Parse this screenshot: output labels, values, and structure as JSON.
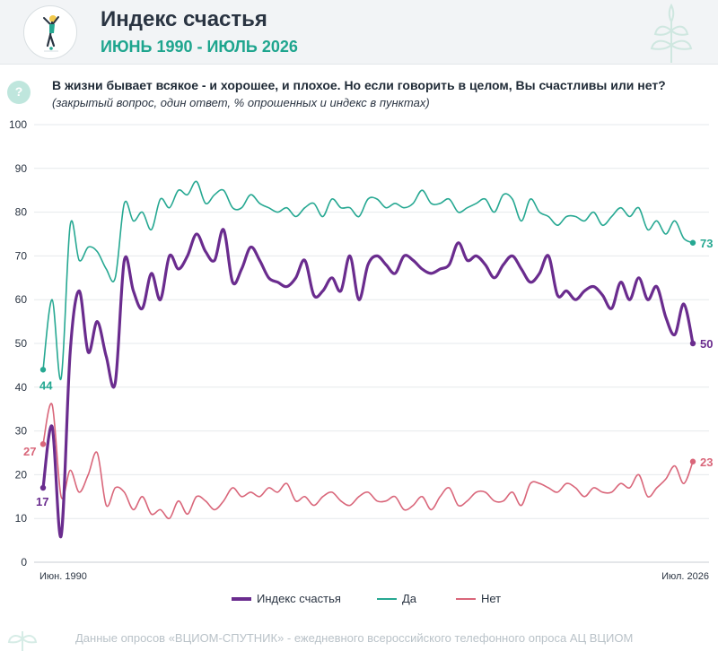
{
  "header": {
    "title": "Индекс счастья",
    "subtitle": "ИЮНЬ 1990 - ИЮЛЬ 2026"
  },
  "question": {
    "text": "В жизни бывает всякое - и хорошее, и плохое. Но если говорить в целом, Вы счастливы  или нет?",
    "note": "(закрытый вопрос, один ответ, % опрошенных и индекс в пунктах)",
    "icon": "question-icon"
  },
  "colors": {
    "index": "#6a2c8e",
    "yes": "#26a892",
    "no": "#d9667a",
    "grid": "#e6e9ec",
    "axis": "#c8ced3"
  },
  "legend": {
    "index_label": "Индекс счастья",
    "yes_label": "Да",
    "no_label": "Нет"
  },
  "footer": {
    "text": "Данные опросов «ВЦИОМ-СПУТНИК» - ежедневного всероссийского телефонного опроса АЦ ВЦИОМ"
  },
  "chart_data": {
    "type": "line",
    "ylim": [
      0,
      100
    ],
    "yticks": [
      "0",
      "10",
      "20",
      "30",
      "40",
      "50",
      "60",
      "70",
      "80",
      "90",
      "100"
    ],
    "x_start_label": "Июн. 1990",
    "x_end_label": "Июл. 2026",
    "grid": true,
    "legend_position": "bottom",
    "series": [
      {
        "key": "index",
        "name": "Индекс счастья",
        "start_label": "17",
        "end_label": "50",
        "values": [
          17,
          31,
          6,
          48,
          62,
          48,
          55,
          47,
          41,
          69,
          62,
          58,
          66,
          60,
          70,
          67,
          70,
          75,
          71,
          69,
          76,
          64,
          67,
          72,
          69,
          65,
          64,
          63,
          65,
          69,
          61,
          62,
          65,
          62,
          70,
          60,
          68,
          70,
          68,
          66,
          70,
          69,
          67,
          66,
          67,
          68,
          73,
          69,
          70,
          68,
          65,
          68,
          70,
          67,
          64,
          66,
          70,
          61,
          62,
          60,
          62,
          63,
          61,
          58,
          64,
          60,
          65,
          60,
          63,
          56,
          52,
          59,
          50
        ]
      },
      {
        "key": "yes",
        "name": "Да",
        "start_label": "44",
        "end_label": "73",
        "values": [
          44,
          60,
          42,
          77,
          69,
          72,
          71,
          67,
          65,
          82,
          78,
          80,
          76,
          83,
          81,
          85,
          84,
          87,
          82,
          84,
          85,
          81,
          81,
          84,
          82,
          81,
          80,
          81,
          79,
          81,
          82,
          79,
          83,
          81,
          81,
          79,
          83,
          83,
          81,
          82,
          81,
          82,
          85,
          82,
          82,
          83,
          80,
          81,
          82,
          83,
          80,
          84,
          83,
          78,
          83,
          80,
          79,
          77,
          79,
          79,
          78,
          80,
          77,
          79,
          81,
          79,
          81,
          76,
          78,
          75,
          78,
          74,
          73
        ]
      },
      {
        "key": "no",
        "name": "Нет",
        "start_label": "27",
        "end_label": "23",
        "values": [
          27,
          36,
          15,
          21,
          16,
          20,
          25,
          13,
          17,
          16,
          12,
          15,
          11,
          12,
          10,
          14,
          11,
          15,
          14,
          12,
          14,
          17,
          15,
          16,
          15,
          17,
          16,
          18,
          14,
          15,
          13,
          15,
          16,
          14,
          13,
          15,
          16,
          14,
          14,
          15,
          12,
          13,
          15,
          12,
          15,
          17,
          13,
          14,
          16,
          16,
          14,
          14,
          16,
          13,
          18,
          18,
          17,
          16,
          18,
          17,
          15,
          17,
          16,
          16,
          18,
          17,
          20,
          15,
          17,
          19,
          22,
          18,
          23
        ]
      }
    ]
  }
}
